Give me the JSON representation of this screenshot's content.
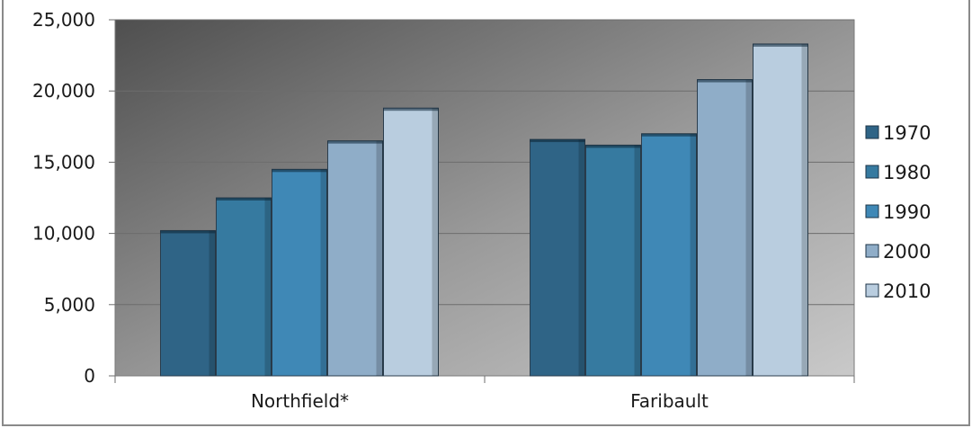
{
  "chart_data": {
    "type": "bar",
    "categories": [
      "Northfield*",
      "Faribault"
    ],
    "series": [
      {
        "name": "1970",
        "values": [
          10200,
          16600
        ],
        "color": "#2f6486"
      },
      {
        "name": "1980",
        "values": [
          12500,
          16200
        ],
        "color": "#367aa0"
      },
      {
        "name": "1990",
        "values": [
          14500,
          17000
        ],
        "color": "#3f88b6"
      },
      {
        "name": "2000",
        "values": [
          16500,
          20800
        ],
        "color": "#8fadc8"
      },
      {
        "name": "2010",
        "values": [
          18800,
          23300
        ],
        "color": "#b9cddf"
      }
    ],
    "ylim": [
      0,
      25000
    ],
    "yticks": [
      0,
      5000,
      10000,
      15000,
      20000,
      25000
    ],
    "ytick_labels": [
      "0",
      "5,000",
      "10,000",
      "15,000",
      "20,000",
      "25,000"
    ],
    "grid": true,
    "legend_position": "right",
    "title": "",
    "xlabel": "",
    "ylabel": ""
  }
}
